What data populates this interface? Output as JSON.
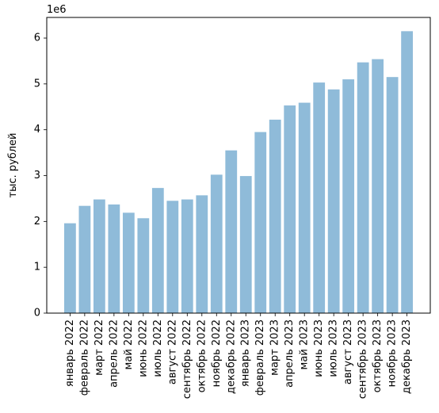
{
  "chart_data": {
    "type": "bar",
    "categories": [
      "январь 2022",
      "февраль 2022",
      "март 2022",
      "апрель 2022",
      "май 2022",
      "июнь 2022",
      "июль 2022",
      "август 2022",
      "сентябрь 2022",
      "октябрь 2022",
      "ноябрь 2022",
      "декабрь 2022",
      "январь 2023",
      "февраль 2023",
      "март 2023",
      "апрель 2023",
      "май 2023",
      "июнь 2023",
      "июль 2023",
      "август 2023",
      "сентябрь 2023",
      "октябрь 2023",
      "ноябрь 2023",
      "декабрь 2023"
    ],
    "values": [
      1960000,
      2340000,
      2480000,
      2370000,
      2190000,
      2070000,
      2730000,
      2450000,
      2480000,
      2570000,
      3020000,
      3550000,
      2990000,
      3950000,
      4220000,
      4530000,
      4590000,
      5030000,
      4880000,
      5100000,
      5470000,
      5540000,
      5150000,
      6150000
    ],
    "title": "",
    "xlabel": "",
    "ylabel": "тыс. рублей",
    "scale_label": "1e6",
    "ylim": [
      0,
      6450000
    ],
    "yticks": [
      0,
      1000000,
      2000000,
      3000000,
      4000000,
      5000000,
      6000000
    ],
    "ytick_labels": [
      "0",
      "1",
      "2",
      "3",
      "4",
      "5",
      "6"
    ],
    "bar_color": "#8fbbd9",
    "grid": false,
    "legend": "none"
  }
}
